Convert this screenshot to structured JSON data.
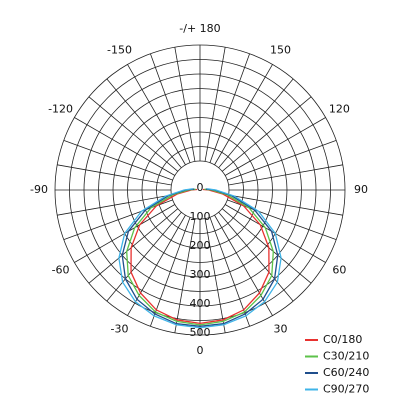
{
  "chart_data": {
    "type": "polar",
    "angles": [
      -100,
      -90,
      -80,
      -70,
      -60,
      -50,
      -40,
      -30,
      -20,
      -10,
      0,
      10,
      20,
      30,
      40,
      50,
      60,
      70,
      80,
      90,
      100
    ],
    "angleticks": [
      {
        "value": 180,
        "label": "-/+ 180"
      },
      150,
      120,
      90,
      60,
      30,
      0,
      -30,
      -60,
      -90,
      -120,
      -150
    ],
    "rlim": [
      0,
      500
    ],
    "rticks": [
      0,
      100,
      200,
      300,
      400,
      500
    ],
    "legend": "lower right",
    "series": [
      {
        "name": "C0/180",
        "color": "#e8312f",
        "values": [
          10,
          30,
          80,
          160,
          240,
          310,
          370,
          410,
          440,
          455,
          460,
          455,
          440,
          410,
          370,
          310,
          240,
          160,
          80,
          30,
          10
        ]
      },
      {
        "name": "C30/210",
        "color": "#5cc24a",
        "values": [
          15,
          40,
          95,
          180,
          260,
          330,
          385,
          420,
          448,
          460,
          465,
          460,
          448,
          420,
          385,
          330,
          260,
          180,
          95,
          40,
          15
        ]
      },
      {
        "name": "C60/240",
        "color": "#1f4e8c",
        "values": [
          20,
          50,
          110,
          200,
          285,
          350,
          400,
          435,
          455,
          468,
          470,
          468,
          455,
          435,
          400,
          350,
          285,
          200,
          110,
          50,
          20
        ]
      },
      {
        "name": "C90/270",
        "color": "#3fb4e8",
        "values": [
          25,
          55,
          120,
          215,
          300,
          365,
          415,
          445,
          462,
          472,
          475,
          472,
          462,
          445,
          415,
          365,
          300,
          215,
          120,
          55,
          25
        ]
      }
    ]
  }
}
